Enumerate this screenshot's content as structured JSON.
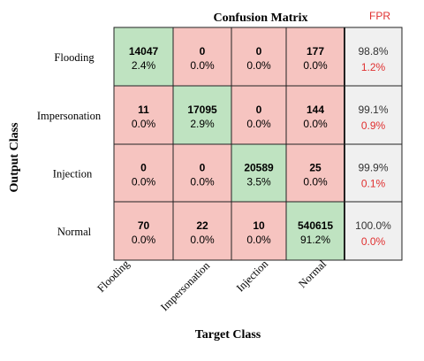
{
  "chart_data": {
    "type": "heatmap",
    "title": "Confusion Matrix",
    "xlabel": "Target Class",
    "ylabel": "Output Class",
    "fpr_label": "FPR",
    "classes": [
      "Flooding",
      "Impersonation",
      "Injection",
      "Normal"
    ],
    "cells": [
      [
        {
          "count": "14047",
          "pct": "2.4%"
        },
        {
          "count": "0",
          "pct": "0.0%"
        },
        {
          "count": "0",
          "pct": "0.0%"
        },
        {
          "count": "177",
          "pct": "0.0%"
        }
      ],
      [
        {
          "count": "11",
          "pct": "0.0%"
        },
        {
          "count": "17095",
          "pct": "2.9%"
        },
        {
          "count": "0",
          "pct": "0.0%"
        },
        {
          "count": "144",
          "pct": "0.0%"
        }
      ],
      [
        {
          "count": "0",
          "pct": "0.0%"
        },
        {
          "count": "0",
          "pct": "0.0%"
        },
        {
          "count": "20589",
          "pct": "3.5%"
        },
        {
          "count": "25",
          "pct": "0.0%"
        }
      ],
      [
        {
          "count": "70",
          "pct": "0.0%"
        },
        {
          "count": "22",
          "pct": "0.0%"
        },
        {
          "count": "10",
          "pct": "0.0%"
        },
        {
          "count": "540615",
          "pct": "91.2%"
        }
      ]
    ],
    "row_summary": [
      {
        "correct": "98.8%",
        "fpr": "1.2%"
      },
      {
        "correct": "99.1%",
        "fpr": "0.9%"
      },
      {
        "correct": "99.9%",
        "fpr": "0.1%"
      },
      {
        "correct": "100.0%",
        "fpr": "0.0%"
      }
    ],
    "colors": {
      "diagonal": "#bfe3c1",
      "off_diagonal": "#f6c4c0",
      "summary": "#f0f0f0",
      "fpr_text": "#e03030",
      "text": "#000000",
      "summary_text": "#333333"
    }
  }
}
